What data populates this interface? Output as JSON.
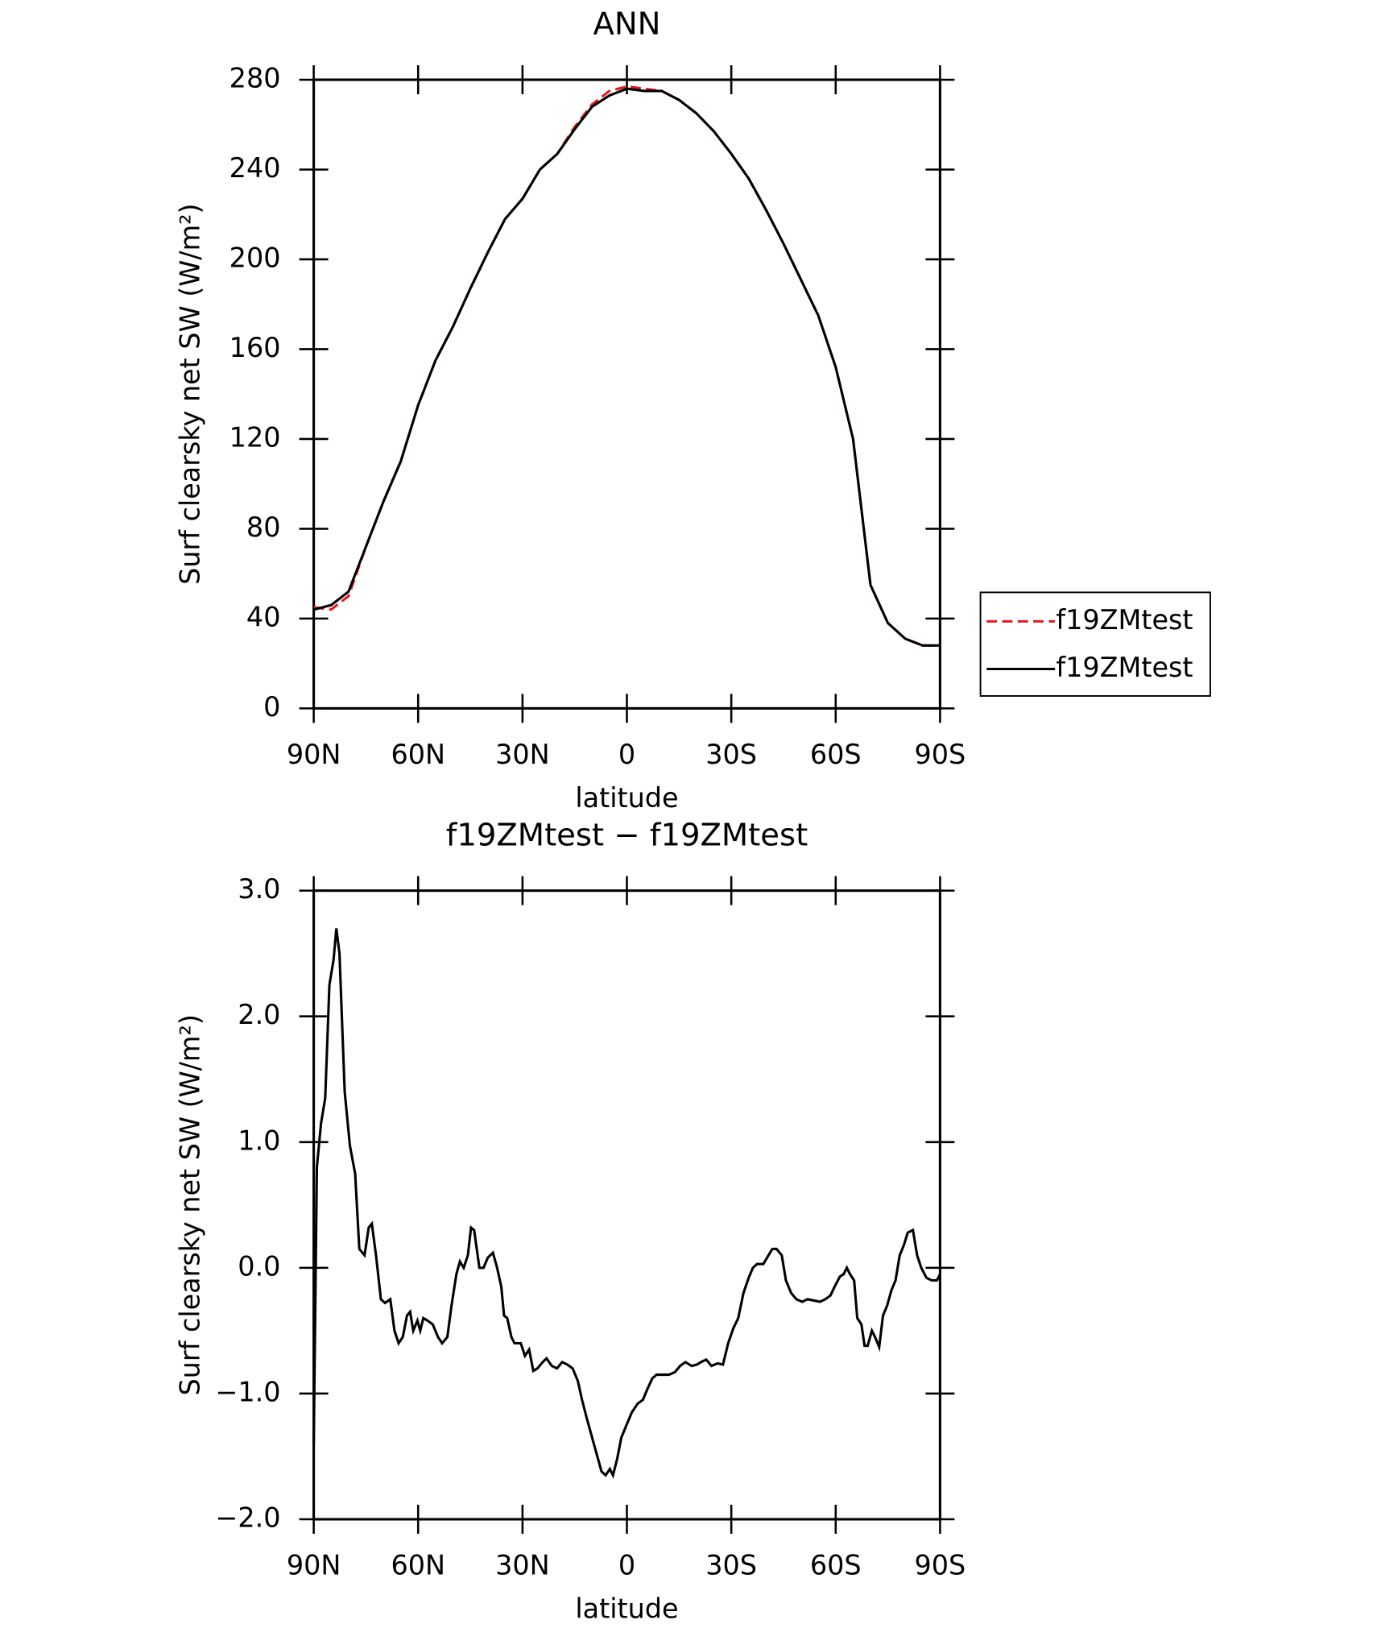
{
  "chart_data": [
    {
      "type": "line",
      "title": "ANN",
      "xlabel": "latitude",
      "ylabel": "Surf clearsky net SW (W/m²)",
      "x": [
        90,
        85,
        80,
        75,
        70,
        65,
        60,
        55,
        50,
        45,
        40,
        35,
        30,
        25,
        20,
        15,
        10,
        5,
        0,
        -5,
        -10,
        -15,
        -20,
        -25,
        -30,
        -35,
        -40,
        -45,
        -50,
        -55,
        -60,
        -65,
        -70,
        -75,
        -80,
        -85,
        -90
      ],
      "series": [
        {
          "name": "f19ZMtest",
          "color": "#e41a1c",
          "dash": "dashed",
          "values": [
            45,
            44,
            50,
            72,
            92,
            110,
            135,
            155,
            170,
            187,
            203,
            218,
            227,
            240,
            247,
            259,
            269,
            275,
            277,
            276,
            275,
            271,
            265,
            257,
            247,
            236,
            222,
            207,
            191,
            175,
            152,
            120,
            55,
            38,
            31,
            28,
            28
          ]
        },
        {
          "name": "f19ZMtest",
          "color": "#000000",
          "dash": "solid",
          "values": [
            44,
            46,
            52,
            72,
            92,
            110,
            135,
            155,
            170,
            187,
            203,
            218,
            227,
            240,
            247,
            258,
            268,
            273,
            276,
            275,
            275,
            271,
            265,
            257,
            247,
            236,
            222,
            207,
            191,
            175,
            152,
            120,
            55,
            38,
            31,
            28,
            28
          ]
        }
      ],
      "xlim": [
        90,
        -90
      ],
      "xticks": [
        {
          "value": 90,
          "label": "90N"
        },
        {
          "value": 60,
          "label": "60N"
        },
        {
          "value": 30,
          "label": "30N"
        },
        0,
        {
          "value": -30,
          "label": "30S"
        },
        {
          "value": -60,
          "label": "60S"
        },
        {
          "value": -90,
          "label": "90S"
        }
      ],
      "ylim": [
        0,
        280
      ],
      "yticks": [
        0,
        40,
        80,
        120,
        160,
        200,
        240,
        280
      ],
      "legend": "right"
    },
    {
      "type": "line",
      "title": "f19ZMtest − f19ZMtest",
      "xlabel": "latitude",
      "ylabel": "Surf clearsky net SW (W/m²)",
      "x": [
        90,
        89.1,
        87.9,
        86.7,
        85.5,
        84.3,
        83.5,
        82.6,
        81.1,
        79.6,
        78.1,
        76.9,
        75.4,
        74.2,
        73.3,
        72.1,
        70.7,
        69.5,
        68,
        66.8,
        65.6,
        64.4,
        63.2,
        62.3,
        61.4,
        60.2,
        59.4,
        58.5,
        57.3,
        55.8,
        54.3,
        53.1,
        51.6,
        50.4,
        49,
        48,
        46.9,
        45.7,
        44.8,
        43.9,
        42.4,
        41.2,
        40,
        38.5,
        37.3,
        36.1,
        35.3,
        34.4,
        33.2,
        32.3,
        30.5,
        29.3,
        28.1,
        26.9,
        25.7,
        24.2,
        23.1,
        21.6,
        20.1,
        18.6,
        17.1,
        15.6,
        14.1,
        12.9,
        11.5,
        10,
        8.5,
        7.3,
        6.1,
        4.9,
        4,
        2.8,
        1.6,
        0.1,
        -1.4,
        -3.1,
        -4.6,
        -5.8,
        -7.3,
        -8.5,
        -10.3,
        -12.1,
        -13.8,
        -15.3,
        -16.8,
        -18.6,
        -20.1,
        -21.3,
        -22.8,
        -24.3,
        -26.1,
        -27.6,
        -29.1,
        -30.6,
        -32,
        -33.5,
        -35,
        -36.2,
        -37.4,
        -39.2,
        -40.7,
        -41.8,
        -43,
        -44.5,
        -45.7,
        -47.2,
        -48.7,
        -50.4,
        -51.9,
        -53.7,
        -55.5,
        -57,
        -58.5,
        -59.7,
        -61.2,
        -62.3,
        -63.2,
        -64.1,
        -65.3,
        -66.2,
        -67.4,
        -68.3,
        -69.2,
        -70.4,
        -71.3,
        -72.5,
        -73.6,
        -74.8,
        -76,
        -77.2,
        -78.4,
        -79.6,
        -80.7,
        -82.2,
        -83.4,
        -84.6,
        -86.1,
        -87.6,
        -89.1,
        -90
      ],
      "series": [
        {
          "color": "#000000",
          "dash": "solid",
          "values": [
            -1.4,
            0.8,
            1.15,
            1.35,
            2.25,
            2.45,
            2.7,
            2.5,
            1.4,
            0.97,
            0.75,
            0.15,
            0.1,
            0.32,
            0.35,
            0.1,
            -0.25,
            -0.28,
            -0.25,
            -0.5,
            -0.6,
            -0.55,
            -0.38,
            -0.35,
            -0.5,
            -0.42,
            -0.5,
            -0.4,
            -0.42,
            -0.45,
            -0.55,
            -0.6,
            -0.55,
            -0.3,
            -0.05,
            0.05,
            0,
            0.1,
            0.32,
            0.3,
            0,
            0,
            0.08,
            0.12,
            0,
            -0.15,
            -0.38,
            -0.4,
            -0.55,
            -0.6,
            -0.6,
            -0.7,
            -0.65,
            -0.82,
            -0.8,
            -0.75,
            -0.72,
            -0.78,
            -0.8,
            -0.75,
            -0.77,
            -0.8,
            -0.9,
            -1.05,
            -1.2,
            -1.35,
            -1.5,
            -1.62,
            -1.65,
            -1.6,
            -1.65,
            -1.52,
            -1.35,
            -1.25,
            -1.15,
            -1.08,
            -1.05,
            -0.97,
            -0.88,
            -0.85,
            -0.85,
            -0.85,
            -0.83,
            -0.78,
            -0.75,
            -0.78,
            -0.77,
            -0.75,
            -0.73,
            -0.78,
            -0.76,
            -0.77,
            -0.6,
            -0.48,
            -0.4,
            -0.2,
            -0.08,
            0,
            0.03,
            0.03,
            0.1,
            0.15,
            0.15,
            0.1,
            -0.1,
            -0.2,
            -0.25,
            -0.27,
            -0.25,
            -0.26,
            -0.27,
            -0.25,
            -0.22,
            -0.15,
            -0.07,
            -0.05,
            0,
            -0.05,
            -0.1,
            -0.4,
            -0.45,
            -0.62,
            -0.62,
            -0.5,
            -0.55,
            -0.63,
            -0.38,
            -0.3,
            -0.18,
            -0.1,
            0.1,
            0.18,
            0.28,
            0.3,
            0.1,
            0,
            -0.08,
            -0.1,
            -0.1,
            -0.05
          ]
        }
      ],
      "xlim": [
        90,
        -90
      ],
      "xticks": [
        {
          "value": 90,
          "label": "90N"
        },
        {
          "value": 60,
          "label": "60N"
        },
        {
          "value": 30,
          "label": "30N"
        },
        0,
        {
          "value": -30,
          "label": "30S"
        },
        {
          "value": -60,
          "label": "60S"
        },
        {
          "value": -90,
          "label": "90S"
        }
      ],
      "ylim": [
        -2,
        3
      ],
      "yticks": [
        {
          "value": -2,
          "label": "−2.0"
        },
        {
          "value": -1,
          "label": "−1.0"
        },
        {
          "value": 0,
          "label": "0.0"
        },
        {
          "value": 1,
          "label": "1.0"
        },
        {
          "value": 2,
          "label": "2.0"
        },
        {
          "value": 3,
          "label": "3.0"
        }
      ]
    }
  ]
}
